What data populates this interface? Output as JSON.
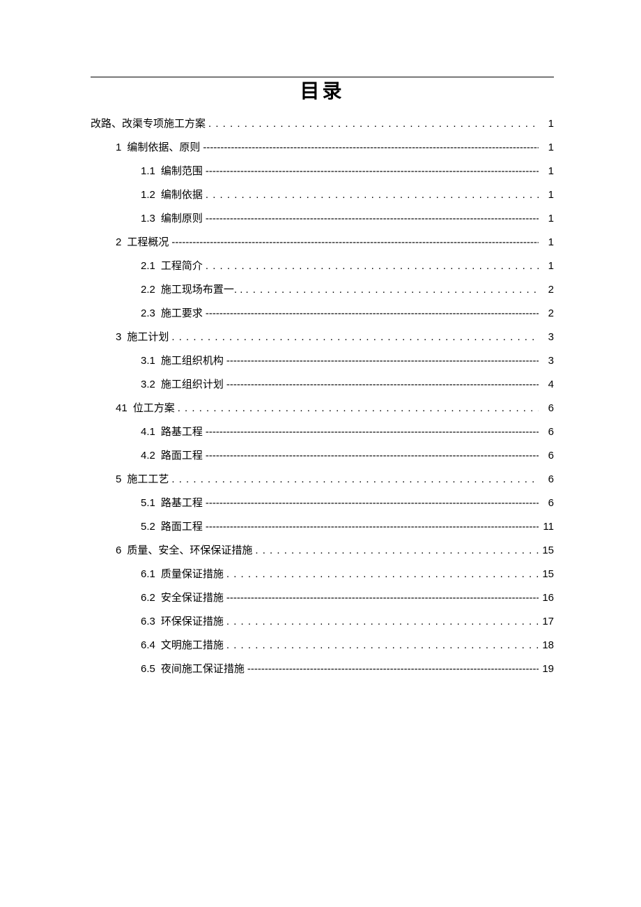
{
  "title": "目录",
  "entries": [
    {
      "level": 0,
      "num": "",
      "label": "改路、改渠专项施工方案",
      "leader": "dots",
      "page": "1",
      "prefix": ""
    },
    {
      "level": 1,
      "num": "1",
      "label": "编制依据、原则",
      "leader": "dashes",
      "page": "1",
      "prefix": ""
    },
    {
      "level": 2,
      "num": "1.1",
      "label": "编制范围",
      "leader": "dashes",
      "page": "1",
      "prefix": ""
    },
    {
      "level": 2,
      "num": "1.2",
      "label": "编制依据",
      "leader": "dots",
      "page": "1",
      "prefix": ""
    },
    {
      "level": 2,
      "num": "1.3",
      "label": "编制原则",
      "leader": "dashes",
      "page": "1",
      "prefix": ""
    },
    {
      "level": 1,
      "num": "2",
      "label": "工程概况",
      "leader": "dashes",
      "page": "1",
      "prefix": ""
    },
    {
      "level": 2,
      "num": "2.1",
      "label": "工程简介",
      "leader": "dots",
      "page": "1",
      "prefix": ""
    },
    {
      "level": 2,
      "num": "2.2",
      "label": "施工现场布置一",
      "leader": "dots",
      "page": "2",
      "prefix": ". . . "
    },
    {
      "level": 2,
      "num": "2.3",
      "label": "施工要求",
      "leader": "dashes",
      "page": "2",
      "prefix": ""
    },
    {
      "level": 1,
      "num": "3",
      "label": "施工计划",
      "leader": "dots",
      "page": "3",
      "prefix": ""
    },
    {
      "level": 2,
      "num": "3.1",
      "label": "施工组织机构",
      "leader": "dashes",
      "page": "3",
      "prefix": ""
    },
    {
      "level": 2,
      "num": "3.2",
      "label": "施工组织计划",
      "leader": "dashes",
      "page": "4",
      "prefix": ""
    },
    {
      "level": 1,
      "num": "41",
      "label": "位工方案",
      "leader": "dots",
      "page": "6",
      "prefix": ""
    },
    {
      "level": 2,
      "num": "4.1",
      "label": "路基工程",
      "leader": "dashes",
      "page": "6",
      "prefix": ""
    },
    {
      "level": 2,
      "num": "4.2",
      "label": "路面工程",
      "leader": "dashes",
      "page": "6",
      "prefix": ""
    },
    {
      "level": 1,
      "num": "5",
      "label": "施工工艺",
      "leader": "dots",
      "page": "6",
      "prefix": ""
    },
    {
      "level": 2,
      "num": "5.1",
      "label": "路基工程",
      "leader": "dashes",
      "page": "6",
      "prefix": ""
    },
    {
      "level": 2,
      "num": "5.2",
      "label": "路面工程",
      "leader": "dashes",
      "page": "11",
      "prefix": ""
    },
    {
      "level": 1,
      "num": "6",
      "label": "质量、安全、环保保证措施",
      "leader": "dots",
      "page": "15",
      "prefix": ""
    },
    {
      "level": 2,
      "num": "6.1",
      "label": "质量保证措施",
      "leader": "dots",
      "page": "15",
      "prefix": ""
    },
    {
      "level": 2,
      "num": "6.2",
      "label": "安全保证措施",
      "leader": "dashes",
      "page": "16",
      "prefix": ""
    },
    {
      "level": 2,
      "num": "6.3",
      "label": "环保保证措施",
      "leader": "dots",
      "page": "17",
      "prefix": ""
    },
    {
      "level": 2,
      "num": "6.4",
      "label": "文明施工措施",
      "leader": "dots",
      "page": "18",
      "prefix": ""
    },
    {
      "level": 2,
      "num": "6.5",
      "label": "夜间施工保证措施",
      "leader": "dashes",
      "page": "19",
      "prefix": ""
    }
  ]
}
